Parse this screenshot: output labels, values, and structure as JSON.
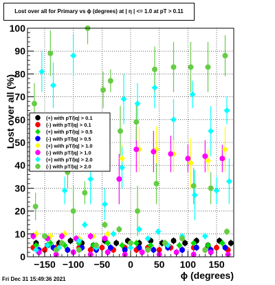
{
  "chart_data": {
    "type": "scatter",
    "title": "Lost over all for Primary vs ϕ (degrees) at |  η | <= 1.0 at pT > 0.11",
    "xlabel": "ϕ (degrees)",
    "ylabel": "Lost over all (%)",
    "xlim": [
      -180,
      180
    ],
    "ylim": [
      0,
      100
    ],
    "x_ticks": [
      -150,
      -100,
      -50,
      0,
      50,
      100,
      150
    ],
    "y_ticks": [
      0,
      10,
      20,
      30,
      40,
      50,
      60,
      70,
      80,
      90,
      100
    ],
    "grid": true,
    "legend_position": "left-middle",
    "series": [
      {
        "name": "(+) with pT/|q| > 0.1",
        "color": "#000000",
        "points": [
          [
            -165,
            6
          ],
          [
            -145,
            5
          ],
          [
            -125,
            6
          ],
          [
            -105,
            7
          ],
          [
            -85,
            6
          ],
          [
            -65,
            5
          ],
          [
            -45,
            7
          ],
          [
            -25,
            6
          ],
          [
            -5,
            7
          ],
          [
            15,
            6
          ],
          [
            35,
            7
          ],
          [
            55,
            6
          ],
          [
            75,
            7
          ],
          [
            95,
            6
          ],
          [
            115,
            7
          ],
          [
            135,
            5
          ],
          [
            155,
            7
          ],
          [
            175,
            6
          ]
        ]
      },
      {
        "name": "(-) with pT/|q| > 0.1",
        "color": "#ff0000",
        "points": [
          [
            -170,
            4
          ],
          [
            -150,
            3
          ],
          [
            -130,
            4
          ],
          [
            -110,
            3
          ],
          [
            -90,
            4
          ],
          [
            -70,
            3
          ],
          [
            -50,
            4
          ],
          [
            -30,
            3
          ],
          [
            -10,
            4
          ],
          [
            10,
            3
          ],
          [
            30,
            4
          ],
          [
            50,
            3
          ],
          [
            70,
            4
          ],
          [
            90,
            3
          ],
          [
            110,
            4
          ],
          [
            130,
            3
          ],
          [
            150,
            4
          ],
          [
            170,
            3
          ]
        ]
      },
      {
        "name": "(+) with pT/|q| > 0.5",
        "color": "#00dd00",
        "points": [
          [
            -165,
            5
          ],
          [
            -140,
            6
          ],
          [
            -115,
            5
          ],
          [
            -90,
            6
          ],
          [
            -65,
            5
          ],
          [
            -40,
            6
          ],
          [
            -15,
            5
          ],
          [
            10,
            6
          ],
          [
            35,
            5
          ],
          [
            60,
            6
          ],
          [
            85,
            5
          ],
          [
            110,
            6
          ],
          [
            135,
            5
          ],
          [
            160,
            6
          ]
        ]
      },
      {
        "name": "(-) with pT/|q| > 0.5",
        "color": "#0000ff",
        "points": [
          [
            -160,
            3
          ],
          [
            -135,
            4
          ],
          [
            -110,
            3
          ],
          [
            -85,
            4
          ],
          [
            -60,
            3
          ],
          [
            -35,
            4
          ],
          [
            -10,
            3
          ],
          [
            15,
            4
          ],
          [
            40,
            3
          ],
          [
            65,
            4
          ],
          [
            90,
            3
          ],
          [
            115,
            4
          ],
          [
            140,
            3
          ],
          [
            165,
            4
          ]
        ]
      },
      {
        "name": "(+) with pT/|q| > 1.0",
        "color": "#ffff00",
        "points": [
          [
            -165,
            10
          ],
          [
            -140,
            9
          ],
          [
            -115,
            10
          ],
          [
            -90,
            8
          ],
          [
            -65,
            9
          ],
          [
            -40,
            10
          ],
          [
            -15,
            43
          ],
          [
            15,
            47
          ],
          [
            45,
            47
          ],
          [
            75,
            45
          ],
          [
            105,
            41
          ],
          [
            135,
            42
          ],
          [
            165,
            47
          ]
        ]
      },
      {
        "name": "(-) with pT/|q| > 1.0",
        "color": "#ff00ff",
        "points": [
          [
            -170,
            9
          ],
          [
            -145,
            8
          ],
          [
            -120,
            9
          ],
          [
            -95,
            8
          ],
          [
            -70,
            9
          ],
          [
            -45,
            8
          ],
          [
            -20,
            34
          ],
          [
            10,
            47
          ],
          [
            40,
            46
          ],
          [
            70,
            45
          ],
          [
            100,
            43
          ],
          [
            130,
            44
          ],
          [
            160,
            43
          ],
          [
            -160,
            2
          ],
          [
            -130,
            1
          ],
          [
            -100,
            2
          ],
          [
            -70,
            1
          ],
          [
            -40,
            2
          ],
          [
            -10,
            1
          ],
          [
            20,
            2
          ],
          [
            50,
            1
          ],
          [
            80,
            2
          ],
          [
            110,
            1
          ],
          [
            140,
            2
          ],
          [
            170,
            1
          ]
        ]
      },
      {
        "name": "(+) with pT/|q| > 2.0",
        "color": "#00ffff",
        "points": [
          [
            -165,
            3
          ],
          [
            -155,
            81
          ],
          [
            -145,
            5
          ],
          [
            -135,
            75
          ],
          [
            -125,
            4
          ],
          [
            -115,
            29
          ],
          [
            -100,
            88
          ],
          [
            -90,
            7
          ],
          [
            -80,
            14
          ],
          [
            -70,
            34
          ],
          [
            -60,
            4
          ],
          [
            -45,
            23
          ],
          [
            -30,
            10
          ],
          [
            -15,
            39
          ],
          [
            -12,
            69
          ],
          [
            0,
            4
          ],
          [
            12,
            67
          ],
          [
            15,
            12
          ],
          [
            30,
            8
          ],
          [
            42,
            74
          ],
          [
            48,
            11
          ],
          [
            65,
            5
          ],
          [
            75,
            60
          ],
          [
            90,
            9
          ],
          [
            108,
            71
          ],
          [
            112,
            27
          ],
          [
            130,
            9
          ],
          [
            140,
            55
          ],
          [
            150,
            29
          ],
          [
            168,
            64
          ],
          [
            172,
            33
          ]
        ]
      },
      {
        "name": "(-) with pT/|q| > 2.0",
        "color": "#66cc44",
        "points": [
          [
            -168,
            67
          ],
          [
            -166,
            22
          ],
          [
            -150,
            9
          ],
          [
            -140,
            89
          ],
          [
            -130,
            3
          ],
          [
            -120,
            6
          ],
          [
            -110,
            37
          ],
          [
            -100,
            20
          ],
          [
            -90,
            3
          ],
          [
            -80,
            28
          ],
          [
            -75,
            100
          ],
          [
            -60,
            5
          ],
          [
            -48,
            73
          ],
          [
            -45,
            14
          ],
          [
            -35,
            77
          ],
          [
            -20,
            12
          ],
          [
            -18,
            55
          ],
          [
            0,
            6
          ],
          [
            10,
            59
          ],
          [
            12,
            20
          ],
          [
            30,
            3
          ],
          [
            42,
            82
          ],
          [
            45,
            32
          ],
          [
            60,
            6
          ],
          [
            75,
            83
          ],
          [
            90,
            8
          ],
          [
            105,
            83
          ],
          [
            110,
            31
          ],
          [
            130,
            3
          ],
          [
            135,
            83
          ],
          [
            140,
            30
          ],
          [
            165,
            88
          ],
          [
            168,
            11
          ]
        ]
      }
    ]
  },
  "footer": {
    "timestamp": "Fri Dec 31 15:49:36 2021"
  }
}
